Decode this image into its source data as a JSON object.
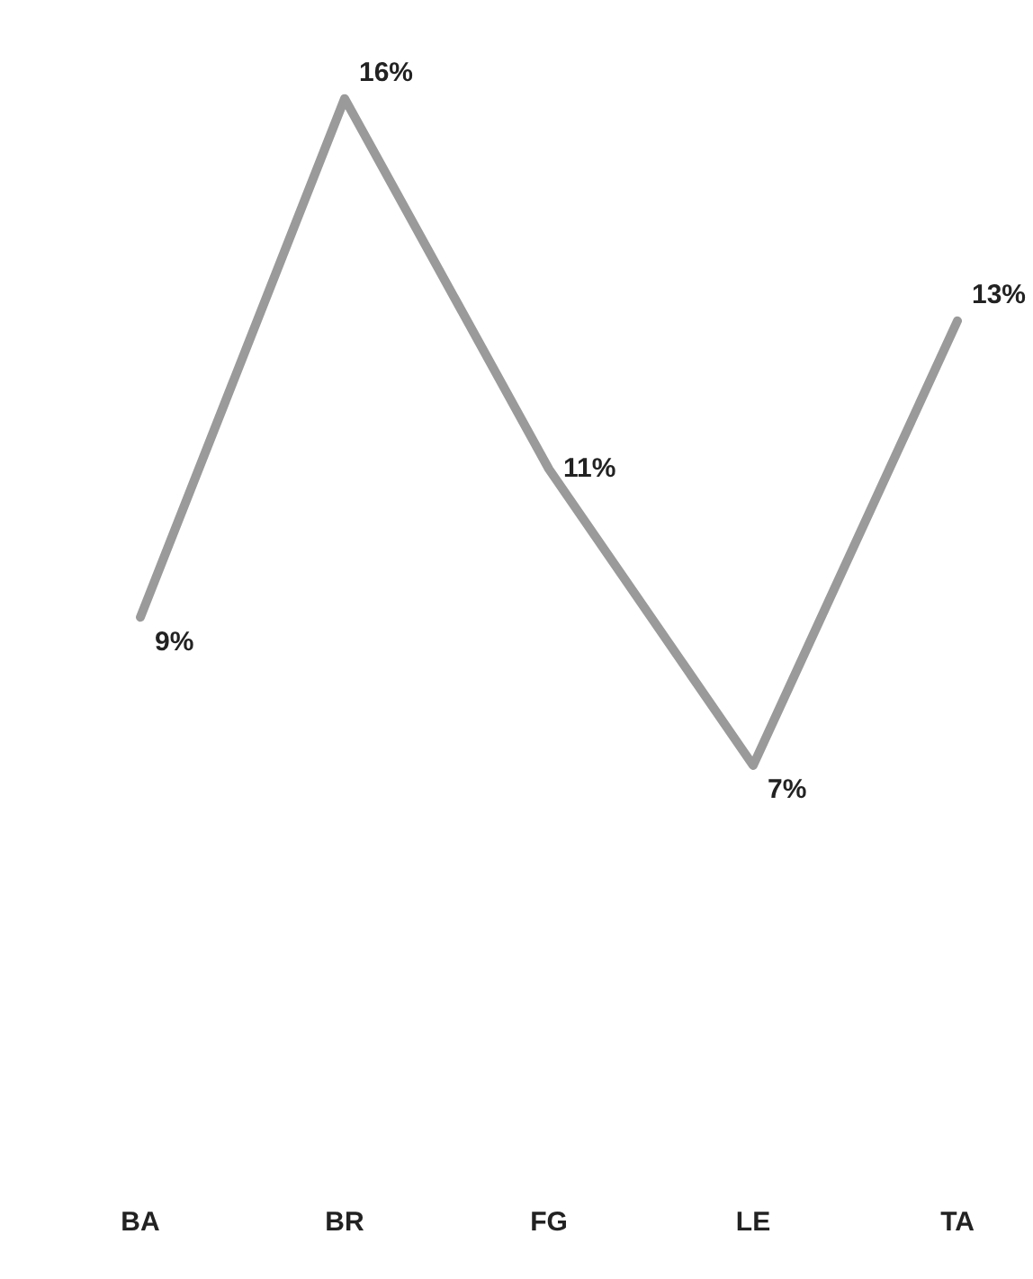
{
  "chart_data": {
    "type": "line",
    "categories": [
      "BA",
      "BR",
      "FG",
      "LE",
      "TA"
    ],
    "series": [
      {
        "color": "#9a9a9a",
        "values": [
          9,
          16,
          11,
          7,
          13
        ],
        "value_labels": [
          "9%",
          "16%",
          "11%",
          "7%",
          "13%"
        ]
      }
    ],
    "tick_labels": "x",
    "grid": false,
    "legend": false,
    "marker": "none",
    "line_style": "solid"
  }
}
